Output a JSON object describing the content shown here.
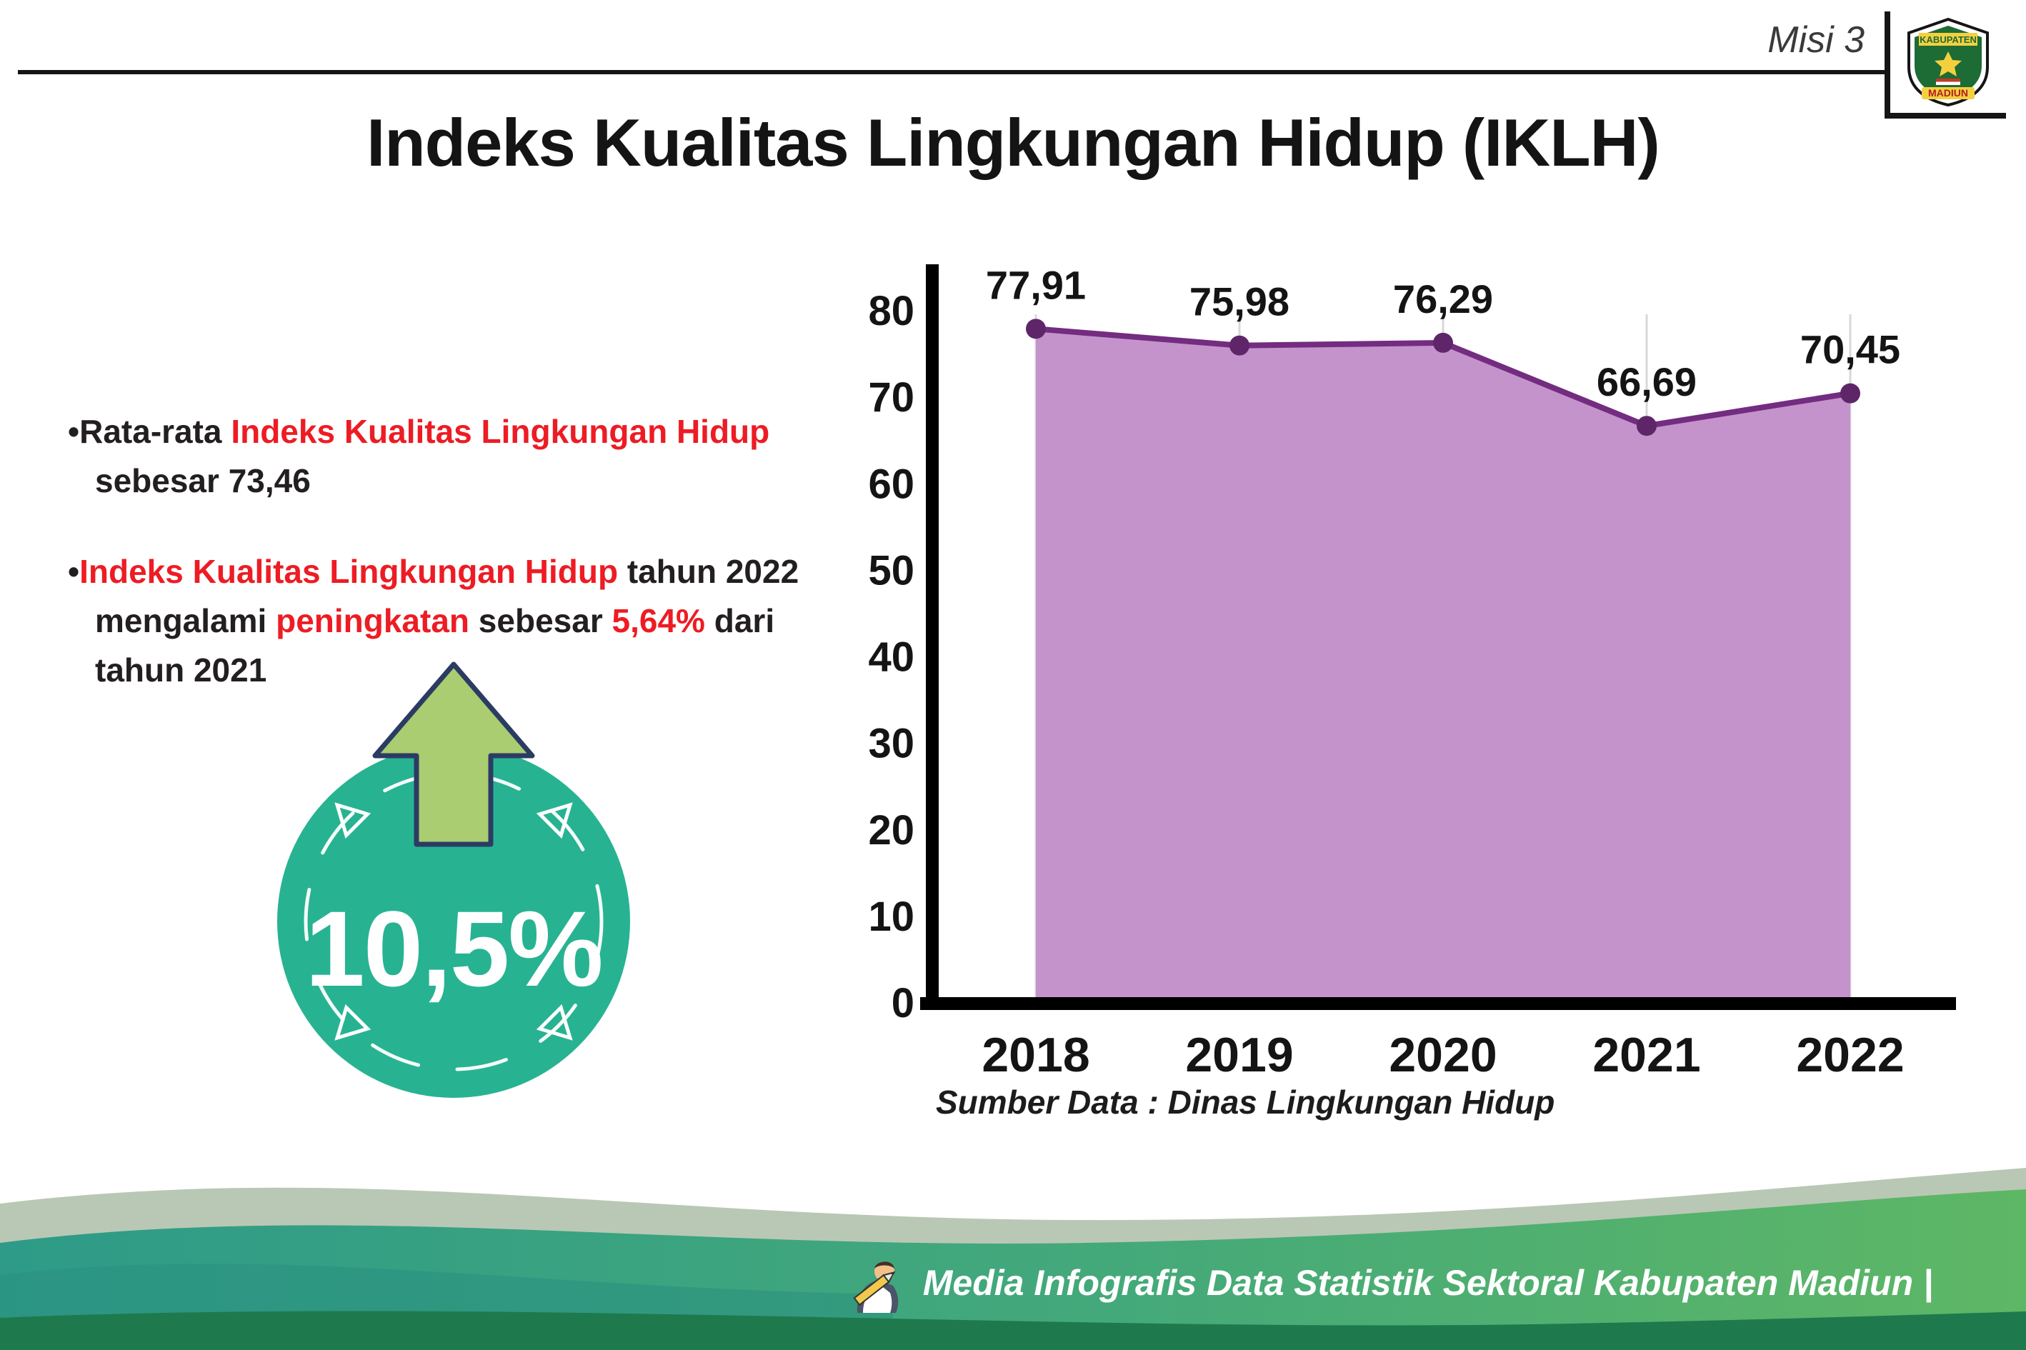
{
  "header": {
    "misi_label": "Misi 3",
    "title": "Indeks Kualitas Lingkungan Hidup (IKLH)",
    "logo": {
      "top_text": "KABUPATEN",
      "bottom_text": "MADIUN"
    }
  },
  "bullets": {
    "b1": {
      "p1": "Rata-rata ",
      "p2": "Indeks Kualitas Lingkungan Hidup",
      "p3": " sebesar 73,46"
    },
    "b2": {
      "p1": "Indeks Kualitas Lingkungan Hidup",
      "p2": " tahun 2022 mengalami ",
      "p3": "peningkatan",
      "p4": " sebesar ",
      "p5": "5,64%",
      "p6": " dari tahun 2021"
    }
  },
  "badge": {
    "value": "10,5%"
  },
  "chart_data": {
    "type": "area",
    "categories": [
      "2018",
      "2019",
      "2020",
      "2021",
      "2022"
    ],
    "values": [
      77.91,
      75.98,
      76.29,
      66.69,
      70.45
    ],
    "value_labels": [
      "77,91",
      "75,98",
      "76,29",
      "66,69",
      "70,45"
    ],
    "title": "",
    "xlabel": "",
    "ylabel": "",
    "ylim": [
      0,
      80
    ],
    "ytick_step": 10,
    "grid": "vertical-light",
    "legend": "none",
    "line_color": "#732c80",
    "fill_color": "#c493cc",
    "marker_color": "#5f2569",
    "axis_color": "#000000"
  },
  "source_note": "Sumber Data : Dinas Lingkungan Hidup",
  "footer": {
    "text": "Media Infografis Data Statistik Sektoral Kabupaten Madiun |"
  },
  "colors": {
    "accent_red": "#ed1c24",
    "badge_teal": "#27b392",
    "arrow_green": "#a9cd70",
    "text_dark": "#231f20"
  }
}
